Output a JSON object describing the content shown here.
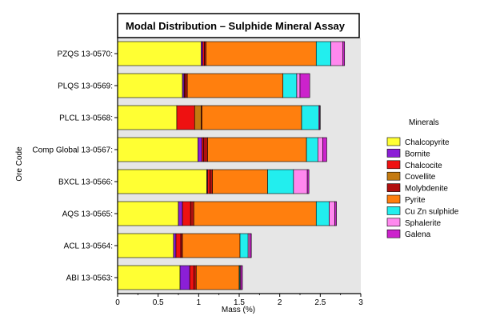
{
  "chart_data": {
    "type": "bar",
    "orientation": "horizontal",
    "stacked": true,
    "title": "Modal Distribution – Sulphide  Mineral Assay",
    "xlabel": "Mass (%)",
    "ylabel": "Ore Code",
    "xlim": [
      0,
      3
    ],
    "xticks": [
      "0",
      "0.5",
      "1",
      "1.5",
      "2",
      "2.5",
      "3"
    ],
    "legend_title": "Minerals",
    "legend_position": "right",
    "background": "#e6e6e6",
    "categories": [
      "ABI 13-0563:",
      "ACL 13-0564:",
      "AQS 13-0565:",
      "BXCL 13-0566:",
      "Comp Global 13-0567:",
      "PLCL 13-0568:",
      "PLQS 13-0569:",
      "PZQS 13-0570:"
    ],
    "series": [
      {
        "name": "Chalcopyrite",
        "color": "#ffff33",
        "values": [
          0.77,
          0.69,
          0.75,
          1.1,
          0.99,
          0.73,
          0.8,
          1.03
        ]
      },
      {
        "name": "Bornite",
        "color": "#8b1fd6",
        "values": [
          0.12,
          0.03,
          0.05,
          0.01,
          0.05,
          0.0,
          0.02,
          0.02
        ]
      },
      {
        "name": "Chalcocite",
        "color": "#ee1111",
        "values": [
          0.05,
          0.06,
          0.1,
          0.03,
          0.02,
          0.22,
          0.01,
          0.02
        ]
      },
      {
        "name": "Covellite",
        "color": "#c47a10",
        "values": [
          0.0,
          0.0,
          0.0,
          0.0,
          0.0,
          0.08,
          0.0,
          0.0
        ]
      },
      {
        "name": "Molybdenite",
        "color": "#b01010",
        "values": [
          0.03,
          0.02,
          0.04,
          0.03,
          0.05,
          0.01,
          0.03,
          0.02
        ]
      },
      {
        "name": "Pyrite",
        "color": "#ff7f0e",
        "values": [
          0.53,
          0.71,
          1.51,
          0.68,
          1.22,
          1.23,
          1.18,
          1.36
        ]
      },
      {
        "name": "Cu Zn sulphide",
        "color": "#22eeee",
        "values": [
          0.01,
          0.1,
          0.16,
          0.32,
          0.14,
          0.21,
          0.17,
          0.18
        ]
      },
      {
        "name": "Sphalerite",
        "color": "#ff88ee",
        "values": [
          0.01,
          0.02,
          0.07,
          0.17,
          0.06,
          0.01,
          0.04,
          0.15
        ]
      },
      {
        "name": "Galena",
        "color": "#cc22cc",
        "values": [
          0.02,
          0.02,
          0.02,
          0.02,
          0.05,
          0.01,
          0.12,
          0.02
        ]
      }
    ]
  }
}
